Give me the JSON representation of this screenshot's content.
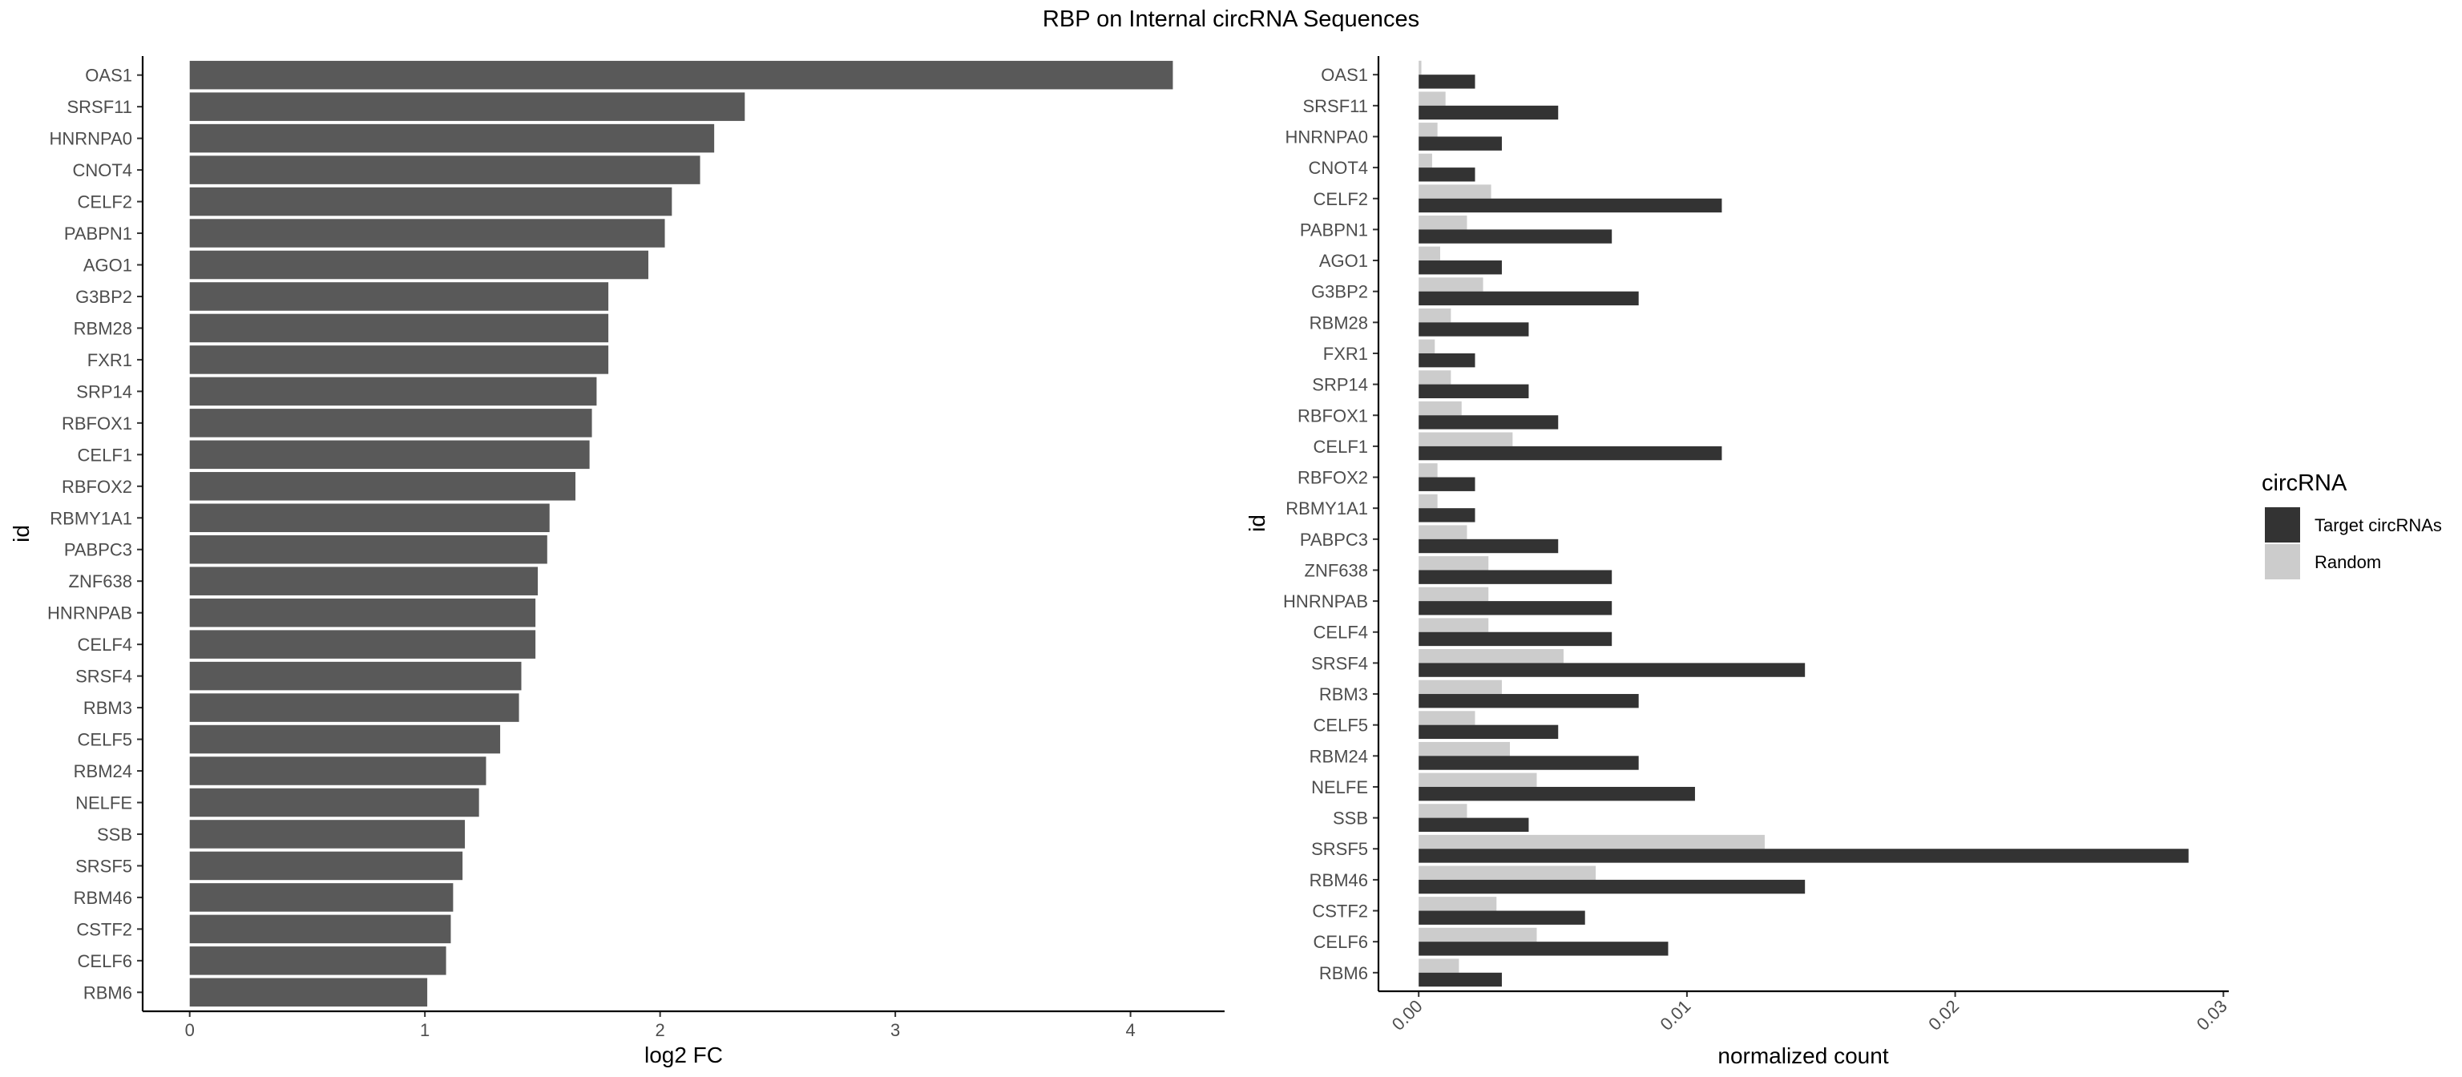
{
  "title": "RBP on Internal circRNA Sequences",
  "colors": {
    "left_bar": "#595959",
    "target": "#333333",
    "random": "#cccccc",
    "axis": "#000000",
    "text": "#4d4d4d"
  },
  "chart_data": [
    {
      "type": "bar",
      "orientation": "horizontal",
      "ylabel": "id",
      "xlabel": "log2 FC",
      "xlim": [
        -0.2,
        4.4
      ],
      "xticks": [
        0,
        1,
        2,
        3,
        4
      ],
      "xtick_labels": [
        "0",
        "1",
        "2",
        "3",
        "4"
      ],
      "grid": false,
      "categories": [
        "OAS1",
        "SRSF11",
        "HNRNPA0",
        "CNOT4",
        "CELF2",
        "PABPN1",
        "AGO1",
        "G3BP2",
        "RBM28",
        "FXR1",
        "SRP14",
        "RBFOX1",
        "CELF1",
        "RBFOX2",
        "RBMY1A1",
        "PABPC3",
        "ZNF638",
        "HNRNPAB",
        "CELF4",
        "SRSF4",
        "RBM3",
        "CELF5",
        "RBM24",
        "NELFE",
        "SSB",
        "SRSF5",
        "RBM46",
        "CSTF2",
        "CELF6",
        "RBM6"
      ],
      "values": [
        4.18,
        2.36,
        2.23,
        2.17,
        2.05,
        2.02,
        1.95,
        1.78,
        1.78,
        1.78,
        1.73,
        1.71,
        1.7,
        1.64,
        1.53,
        1.52,
        1.48,
        1.47,
        1.47,
        1.41,
        1.4,
        1.32,
        1.26,
        1.23,
        1.17,
        1.16,
        1.12,
        1.11,
        1.09,
        1.01
      ]
    },
    {
      "type": "bar",
      "orientation": "horizontal",
      "grouped": true,
      "ylabel": "id",
      "xlabel": "normalized count",
      "xlim": [
        -0.0015,
        0.0302
      ],
      "xticks": [
        0,
        0.01,
        0.02,
        0.03
      ],
      "xtick_labels": [
        "0.00",
        "0.01",
        "0.02",
        "0.03"
      ],
      "xtick_rotation": -45,
      "grid": false,
      "legend": {
        "title": "circRNA",
        "position": "right"
      },
      "categories": [
        "OAS1",
        "SRSF11",
        "HNRNPA0",
        "CNOT4",
        "CELF2",
        "PABPN1",
        "AGO1",
        "G3BP2",
        "RBM28",
        "FXR1",
        "SRP14",
        "RBFOX1",
        "CELF1",
        "RBFOX2",
        "RBMY1A1",
        "PABPC3",
        "ZNF638",
        "HNRNPAB",
        "CELF4",
        "SRSF4",
        "RBM3",
        "CELF5",
        "RBM24",
        "NELFE",
        "SSB",
        "SRSF5",
        "RBM46",
        "CSTF2",
        "CELF6",
        "RBM6"
      ],
      "series": [
        {
          "name": "Target circRNAs",
          "color": "#333333",
          "values": [
            0.0021,
            0.0052,
            0.0031,
            0.0021,
            0.0113,
            0.0072,
            0.0031,
            0.0082,
            0.0041,
            0.0021,
            0.0041,
            0.0052,
            0.0113,
            0.0021,
            0.0021,
            0.0052,
            0.0072,
            0.0072,
            0.0072,
            0.0144,
            0.0082,
            0.0052,
            0.0082,
            0.0103,
            0.0041,
            0.0287,
            0.0144,
            0.0062,
            0.0093,
            0.0031
          ]
        },
        {
          "name": "Random",
          "color": "#cccccc",
          "values": [
            0.0001,
            0.001,
            0.0007,
            0.0005,
            0.0027,
            0.0018,
            0.0008,
            0.0024,
            0.0012,
            0.0006,
            0.0012,
            0.0016,
            0.0035,
            0.0007,
            0.0007,
            0.0018,
            0.0026,
            0.0026,
            0.0026,
            0.0054,
            0.0031,
            0.0021,
            0.0034,
            0.0044,
            0.0018,
            0.0129,
            0.0066,
            0.0029,
            0.0044,
            0.0015
          ]
        }
      ]
    }
  ]
}
